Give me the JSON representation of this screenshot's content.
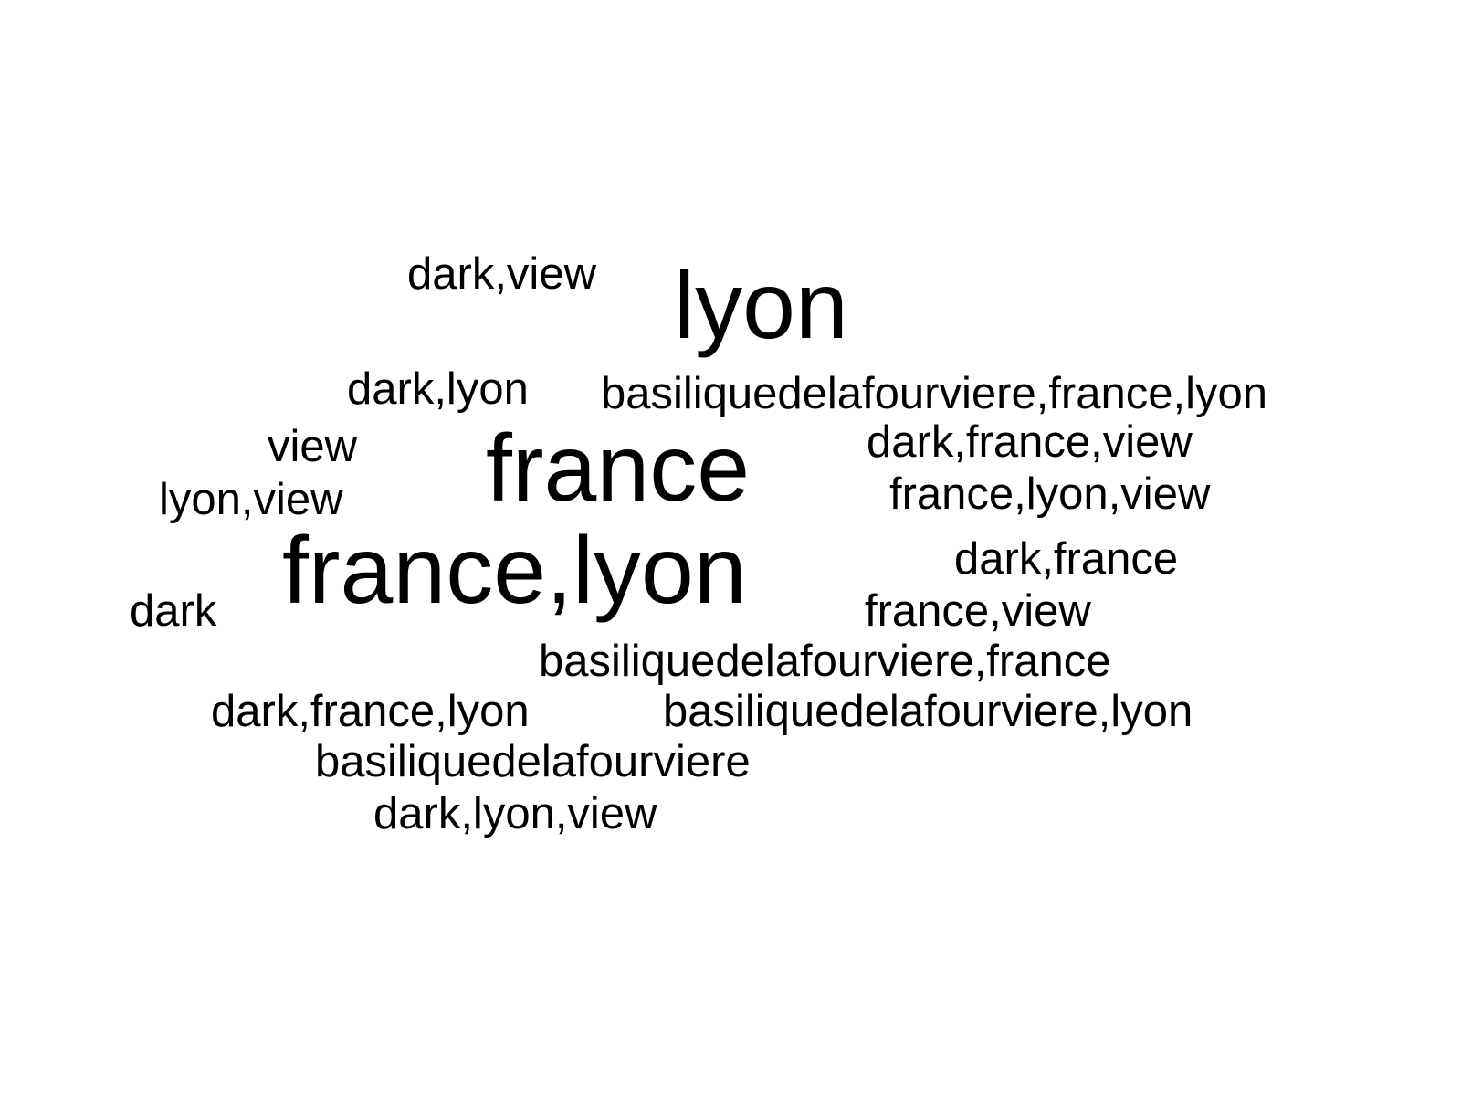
{
  "word_cloud": {
    "words": {
      "lyon": "lyon",
      "france": "france",
      "france_lyon": "france,lyon",
      "dark_view": "dark,view",
      "dark_lyon": "dark,lyon",
      "basilique_france_lyon": "basiliquedelafourviere,france,lyon",
      "view": "view",
      "dark_france_view": "dark,france,view",
      "lyon_view": "lyon,view",
      "france_lyon_view": "france,lyon,view",
      "dark_france": "dark,france",
      "dark": "dark",
      "france_view": "france,view",
      "basilique_france": "basiliquedelafourviere,france",
      "dark_france_lyon": "dark,france,lyon",
      "basilique_lyon": "basiliquedelafourviere,lyon",
      "basilique": "basiliquedelafourviere",
      "dark_lyon_view": "dark,lyon,view"
    },
    "text_color": "#000000",
    "background_color": "#ffffff"
  }
}
